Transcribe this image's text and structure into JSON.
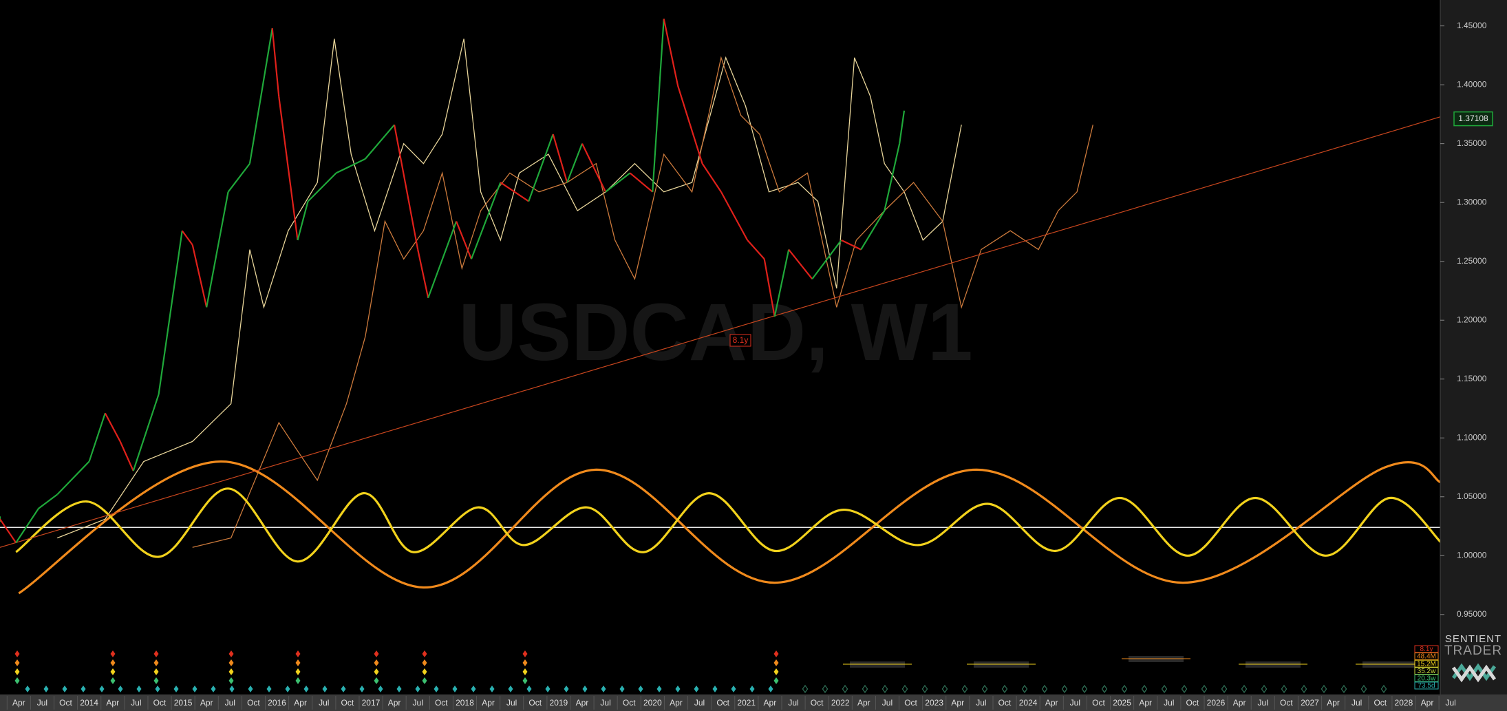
{
  "chart_data": {
    "type": "line",
    "title": "USDCAD, W1",
    "xlim": [
      2013.05,
      2029.1
    ],
    "ylim": [
      0.93,
      1.472
    ],
    "xticks": [
      {
        "value": 2013.25,
        "label": "Apr"
      },
      {
        "value": 2013.5,
        "label": "Jul"
      },
      {
        "value": 2013.75,
        "label": "Oct"
      },
      2014,
      {
        "value": 2014.25,
        "label": "Apr"
      },
      {
        "value": 2014.5,
        "label": "Jul"
      },
      {
        "value": 2014.75,
        "label": "Oct"
      },
      2015,
      {
        "value": 2015.25,
        "label": "Apr"
      },
      {
        "value": 2015.5,
        "label": "Jul"
      },
      {
        "value": 2015.75,
        "label": "Oct"
      },
      2016,
      {
        "value": 2016.25,
        "label": "Apr"
      },
      {
        "value": 2016.5,
        "label": "Jul"
      },
      {
        "value": 2016.75,
        "label": "Oct"
      },
      2017,
      {
        "value": 2017.25,
        "label": "Apr"
      },
      {
        "value": 2017.5,
        "label": "Jul"
      },
      {
        "value": 2017.75,
        "label": "Oct"
      },
      2018,
      {
        "value": 2018.25,
        "label": "Apr"
      },
      {
        "value": 2018.5,
        "label": "Jul"
      },
      {
        "value": 2018.75,
        "label": "Oct"
      },
      2019,
      {
        "value": 2019.25,
        "label": "Apr"
      },
      {
        "value": 2019.5,
        "label": "Jul"
      },
      {
        "value": 2019.75,
        "label": "Oct"
      },
      2020,
      {
        "value": 2020.25,
        "label": "Apr"
      },
      {
        "value": 2020.5,
        "label": "Jul"
      },
      {
        "value": 2020.75,
        "label": "Oct"
      },
      2021,
      {
        "value": 2021.25,
        "label": "Apr"
      },
      {
        "value": 2021.5,
        "label": "Jul"
      },
      {
        "value": 2021.75,
        "label": "Oct"
      },
      2022,
      {
        "value": 2022.25,
        "label": "Apr"
      },
      {
        "value": 2022.5,
        "label": "Jul"
      },
      {
        "value": 2022.75,
        "label": "Oct"
      },
      2023,
      {
        "value": 2023.25,
        "label": "Apr"
      },
      {
        "value": 2023.5,
        "label": "Jul"
      },
      {
        "value": 2023.75,
        "label": "Oct"
      },
      2024,
      {
        "value": 2024.25,
        "label": "Apr"
      },
      {
        "value": 2024.5,
        "label": "Jul"
      },
      {
        "value": 2024.75,
        "label": "Oct"
      },
      2025,
      {
        "value": 2025.25,
        "label": "Apr"
      },
      {
        "value": 2025.5,
        "label": "Jul"
      },
      {
        "value": 2025.75,
        "label": "Oct"
      },
      2026,
      {
        "value": 2026.25,
        "label": "Apr"
      },
      {
        "value": 2026.5,
        "label": "Jul"
      },
      {
        "value": 2026.75,
        "label": "Oct"
      },
      2027,
      {
        "value": 2027.25,
        "label": "Apr"
      },
      {
        "value": 2027.5,
        "label": "Jul"
      },
      {
        "value": 2027.75,
        "label": "Oct"
      },
      2028,
      {
        "value": 2028.25,
        "label": "Apr"
      },
      {
        "value": 2028.5,
        "label": "Jul"
      }
    ],
    "yticks": [
      {
        "value": 0.95,
        "label": "0.95000"
      },
      {
        "value": 1.0,
        "label": "1.00000"
      },
      {
        "value": 1.05,
        "label": "1.05000"
      },
      {
        "value": 1.1,
        "label": "1.10000"
      },
      {
        "value": 1.15,
        "label": "1.15000"
      },
      {
        "value": 1.2,
        "label": "1.20000"
      },
      {
        "value": 1.25,
        "label": "1.25000"
      },
      {
        "value": 1.3,
        "label": "1.30000"
      },
      {
        "value": 1.35,
        "label": "1.35000"
      },
      {
        "value": 1.4,
        "label": "1.40000"
      },
      {
        "value": 1.45,
        "label": "1.45000"
      }
    ],
    "last_price": 1.37108,
    "last_price_color": "#1fa83a",
    "hline": 1.024,
    "hline_color": "#e8e8e8",
    "annotation": "8.1y",
    "annotation_color": "#e0301e",
    "series": [
      {
        "style": "price",
        "color_up": "#1fa83a",
        "color_down": "#e0201a",
        "x": [
          2013.05,
          2013.22,
          2013.46,
          2013.66,
          2014.0,
          2014.17,
          2014.33,
          2014.47,
          2014.74,
          2014.99,
          2015.1,
          2015.25,
          2015.48,
          2015.71,
          2015.95,
          2016.02,
          2016.22,
          2016.33,
          2016.63,
          2016.94,
          2017.25,
          2017.5,
          2017.61,
          2017.91,
          2018.07,
          2018.38,
          2018.68,
          2018.94,
          2019.09,
          2019.25,
          2019.5,
          2019.76,
          2020.0,
          2020.12,
          2020.27,
          2020.53,
          2020.73,
          2021.01,
          2021.19,
          2021.3,
          2021.45,
          2021.7,
          2022.01,
          2022.22,
          2022.47,
          2022.63,
          2022.68
        ],
        "values": [
          1.031,
          1.011,
          1.04,
          1.052,
          1.08,
          1.121,
          1.097,
          1.072,
          1.137,
          1.276,
          1.264,
          1.211,
          1.309,
          1.333,
          1.448,
          1.39,
          1.268,
          1.301,
          1.325,
          1.337,
          1.366,
          1.26,
          1.219,
          1.284,
          1.252,
          1.317,
          1.301,
          1.358,
          1.317,
          1.35,
          1.309,
          1.325,
          1.309,
          1.456,
          1.399,
          1.333,
          1.309,
          1.268,
          1.252,
          1.203,
          1.26,
          1.235,
          1.268,
          1.26,
          1.293,
          1.35,
          1.378
        ]
      },
      {
        "style": "line",
        "color": "#e8d59a",
        "x": [
          2013.66,
          2014.17,
          2014.58,
          2015.1,
          2015.51,
          2015.71,
          2015.86,
          2016.12,
          2016.43,
          2016.61,
          2016.79,
          2017.04,
          2017.35,
          2017.56,
          2017.76,
          2017.99,
          2018.17,
          2018.38,
          2018.58,
          2018.89,
          2019.2,
          2019.5,
          2019.81,
          2020.12,
          2020.42,
          2020.78,
          2020.99,
          2021.24,
          2021.55,
          2021.76,
          2021.96,
          2022.15,
          2022.32,
          2022.47,
          2022.68,
          2022.88,
          2023.09,
          2023.29
        ],
        "values": [
          1.015,
          1.031,
          1.08,
          1.097,
          1.129,
          1.26,
          1.211,
          1.276,
          1.317,
          1.439,
          1.341,
          1.276,
          1.35,
          1.333,
          1.358,
          1.439,
          1.309,
          1.268,
          1.325,
          1.341,
          1.293,
          1.309,
          1.333,
          1.309,
          1.317,
          1.423,
          1.382,
          1.309,
          1.317,
          1.301,
          1.227,
          1.423,
          1.39,
          1.333,
          1.309,
          1.268,
          1.284,
          1.366
        ]
      },
      {
        "style": "line",
        "color": "#cc7a3c",
        "x": [
          2015.1,
          2015.51,
          2016.02,
          2016.22,
          2016.43,
          2016.74,
          2016.94,
          2017.15,
          2017.35,
          2017.56,
          2017.76,
          2017.97,
          2018.17,
          2018.48,
          2018.79,
          2019.09,
          2019.4,
          2019.6,
          2019.81,
          2020.12,
          2020.42,
          2020.73,
          2020.94,
          2021.14,
          2021.35,
          2021.65,
          2021.96,
          2022.17,
          2022.47,
          2022.78,
          2023.09,
          2023.29,
          2023.5,
          2023.81,
          2024.11,
          2024.32,
          2024.52,
          2024.69
        ],
        "values": [
          1.007,
          1.015,
          1.113,
          1.089,
          1.064,
          1.129,
          1.186,
          1.284,
          1.252,
          1.276,
          1.325,
          1.244,
          1.293,
          1.325,
          1.309,
          1.317,
          1.333,
          1.268,
          1.235,
          1.341,
          1.309,
          1.423,
          1.374,
          1.358,
          1.309,
          1.325,
          1.211,
          1.268,
          1.293,
          1.317,
          1.284,
          1.211,
          1.26,
          1.276,
          1.26,
          1.293,
          1.309,
          1.366
        ]
      },
      {
        "style": "cycle",
        "color": "#f08a1c",
        "x": [
          2013.25,
          2015.4,
          2017.56,
          2019.4,
          2021.3,
          2023.45,
          2025.65,
          2027.8,
          2028.4
        ],
        "values": [
          0.968,
          1.08,
          0.973,
          1.073,
          0.977,
          1.073,
          0.977,
          1.075,
          1.062
        ]
      },
      {
        "style": "cycle",
        "color": "#f2d21c",
        "x": [
          2013.22,
          2013.97,
          2014.74,
          2015.48,
          2016.22,
          2016.92,
          2017.45,
          2018.14,
          2018.63,
          2019.3,
          2019.91,
          2020.6,
          2021.3,
          2022.03,
          2022.83,
          2023.57,
          2024.29,
          2024.98,
          2025.7,
          2026.42,
          2027.17,
          2027.85,
          2028.4
        ],
        "values": [
          1.003,
          1.046,
          0.999,
          1.057,
          0.995,
          1.053,
          1.003,
          1.041,
          1.009,
          1.041,
          1.003,
          1.053,
          1.004,
          1.039,
          1.009,
          1.044,
          1.004,
          1.049,
          1.0,
          1.049,
          1.0,
          1.049,
          1.011
        ]
      },
      {
        "style": "trend",
        "color": "#c8461e",
        "x": [
          2013.05,
          2028.4
        ],
        "values": [
          1.007,
          1.373
        ]
      }
    ],
    "cycle_labels": [
      {
        "text": "8.1y",
        "color": "#e0301e"
      },
      {
        "text": "48.4M",
        "color": "#f08a1c"
      },
      {
        "text": "15.2M",
        "color": "#f2d21c"
      },
      {
        "text": "35.2w",
        "color": "#c8d43c"
      },
      {
        "text": "20.3w",
        "color": "#3cc070"
      },
      {
        "text": "73.5d",
        "color": "#2ab0b0"
      }
    ],
    "branding": [
      "SENTIENT",
      "TRADER"
    ]
  }
}
